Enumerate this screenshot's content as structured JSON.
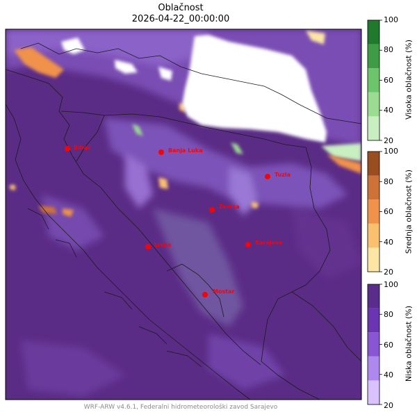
{
  "map": {
    "title": "Oblačnost",
    "datetime": "2026-04-22_00:00:00",
    "footer": "WRF-ARW v4.6.1, Federalni hidrometeorološki zavod Sarajevo",
    "cities": [
      {
        "name": "Bihać"
      },
      {
        "name": "Banja Luka"
      },
      {
        "name": "Tuzla"
      },
      {
        "name": "Zenica"
      },
      {
        "name": "Livno"
      },
      {
        "name": "Sarajevo"
      },
      {
        "name": "Mostar"
      }
    ],
    "city_color": "#ff0000"
  },
  "colorbars": [
    {
      "label": "Visoka oblačnost (%)",
      "ticks": [
        "100",
        "80",
        "60",
        "40",
        "20"
      ],
      "colors": [
        "#c7efc0",
        "#9bdc92",
        "#6cc56a",
        "#3d9c45",
        "#1f7a2e"
      ]
    },
    {
      "label": "Srednja oblačnost (%)",
      "ticks": [
        "100",
        "80",
        "60",
        "40",
        "20"
      ],
      "colors": [
        "#fde5a4",
        "#f9c06e",
        "#f0924a",
        "#cf7238",
        "#9a4e20"
      ]
    },
    {
      "label": "Niska oblačnost (%)",
      "ticks": [
        "100",
        "80",
        "60",
        "40",
        "20"
      ],
      "colors": [
        "#d9c2ff",
        "#ae88ef",
        "#8a55d4",
        "#6a34b2",
        "#5a2d8c"
      ]
    }
  ]
}
